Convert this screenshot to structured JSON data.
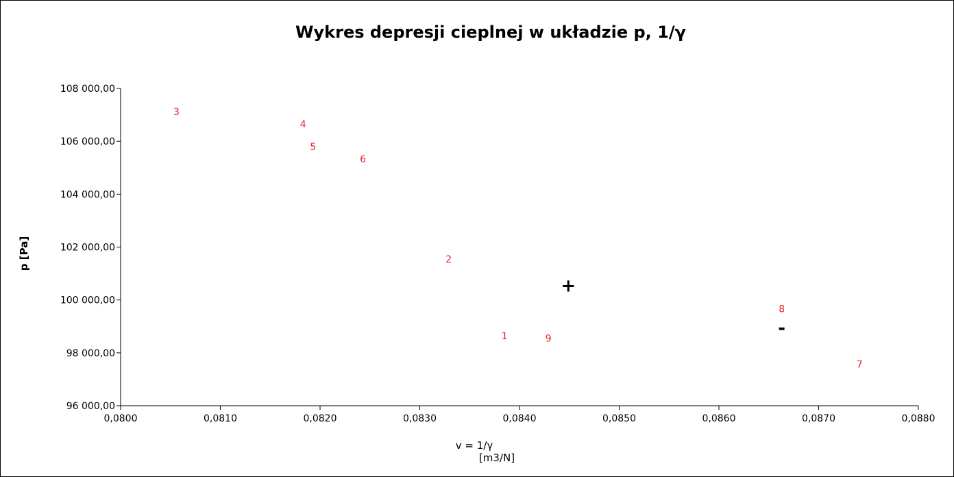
{
  "chart_data": {
    "type": "scatter",
    "title": "Wykres depresji cieplnej w układzie p, 1/γ",
    "xlabel_line1": "v = 1/γ",
    "xlabel_line2": "[m3/N]",
    "ylabel": "p [Pa]",
    "xlim": [
      0.08,
      0.088
    ],
    "ylim": [
      96000,
      108000
    ],
    "x_ticks": [
      0.08,
      0.081,
      0.082,
      0.083,
      0.084,
      0.085,
      0.086,
      0.087,
      0.088
    ],
    "x_tick_labels": [
      "0,0800",
      "0,0810",
      "0,0820",
      "0,0830",
      "0,0840",
      "0,0850",
      "0,0860",
      "0,0870",
      "0,0880"
    ],
    "y_ticks": [
      96000,
      98000,
      100000,
      102000,
      104000,
      106000,
      108000
    ],
    "y_tick_labels": [
      "96 000,00",
      "98 000,00",
      "100 000,00",
      "102 000,00",
      "104 000,00",
      "106 000,00",
      "108 000,00"
    ],
    "grid": false,
    "legend": "none",
    "label_color": "#e8202a",
    "symbol_color": "#000000",
    "points": [
      {
        "label": "1",
        "x": 0.08385,
        "y": 98650
      },
      {
        "label": "2",
        "x": 0.08329,
        "y": 101550
      },
      {
        "label": "3",
        "x": 0.08056,
        "y": 107120
      },
      {
        "label": "4",
        "x": 0.08183,
        "y": 106650
      },
      {
        "label": "5",
        "x": 0.08193,
        "y": 105800
      },
      {
        "label": "6",
        "x": 0.08243,
        "y": 105330
      },
      {
        "label": "7",
        "x": 0.08741,
        "y": 97570
      },
      {
        "label": "8",
        "x": 0.08663,
        "y": 99670
      },
      {
        "label": "9",
        "x": 0.08429,
        "y": 98550
      }
    ],
    "symbols": [
      {
        "label": "+",
        "x": 0.08449,
        "y": 100550
      },
      {
        "label": "-",
        "x": 0.08663,
        "y": 98950
      }
    ]
  }
}
